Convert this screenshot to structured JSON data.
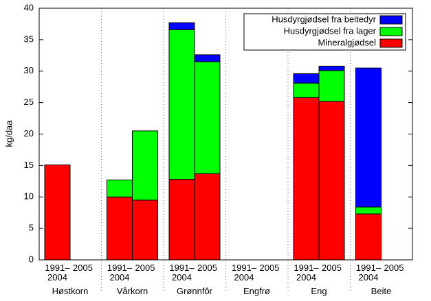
{
  "chart_data": {
    "type": "stacked-bar",
    "ylabel": "kg/daa",
    "groups": [
      "Høstkorn",
      "Vårkorn",
      "Grønnfôr",
      "Engfrø",
      "Eng",
      "Beite"
    ],
    "categories": [
      "1991–2004",
      "2005",
      "1991–2004",
      "2005",
      "1991–2004",
      "2005",
      "1991–2004",
      "2005",
      "1991–2004",
      "2005",
      "1991–2004",
      "2005"
    ],
    "series": [
      {
        "name": "Mineralgjødsel",
        "color": "#ff0000",
        "values": [
          15.1,
          null,
          10.0,
          9.5,
          12.8,
          13.7,
          null,
          null,
          25.8,
          25.2,
          7.3,
          null
        ]
      },
      {
        "name": "Husdyrgjødsel fra lager",
        "color": "#00ff00",
        "values": [
          null,
          null,
          2.7,
          11.0,
          23.8,
          17.8,
          null,
          null,
          2.3,
          4.9,
          1.1,
          null
        ]
      },
      {
        "name": "Husdyrgjødsel fra beitedyr",
        "color": "#0000ff",
        "values": [
          null,
          null,
          null,
          null,
          1.1,
          1.1,
          null,
          null,
          1.5,
          0.7,
          22.1,
          null
        ]
      }
    ],
    "ylim": [
      0,
      40
    ],
    "yticks": [
      0,
      5,
      10,
      15,
      20,
      25,
      30,
      35,
      40
    ],
    "legend": "top-right"
  }
}
